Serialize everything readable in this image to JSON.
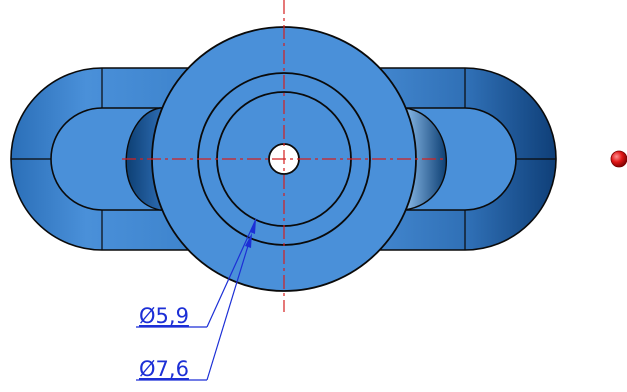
{
  "drawing": {
    "dimensions": [
      {
        "label": "Ø5,9",
        "value": 5.9
      },
      {
        "label": "Ø7,6",
        "value": 7.6
      }
    ]
  },
  "colors": {
    "part_fill": "#4a90d9",
    "part_dark": "#1b5ea8",
    "part_shadow": "#0d3f73",
    "outline": "#0a0a0a",
    "centerline": "#d42020",
    "dimension": "#1c2fd6",
    "point_marker": "#e01515",
    "background": "#ffffff"
  }
}
